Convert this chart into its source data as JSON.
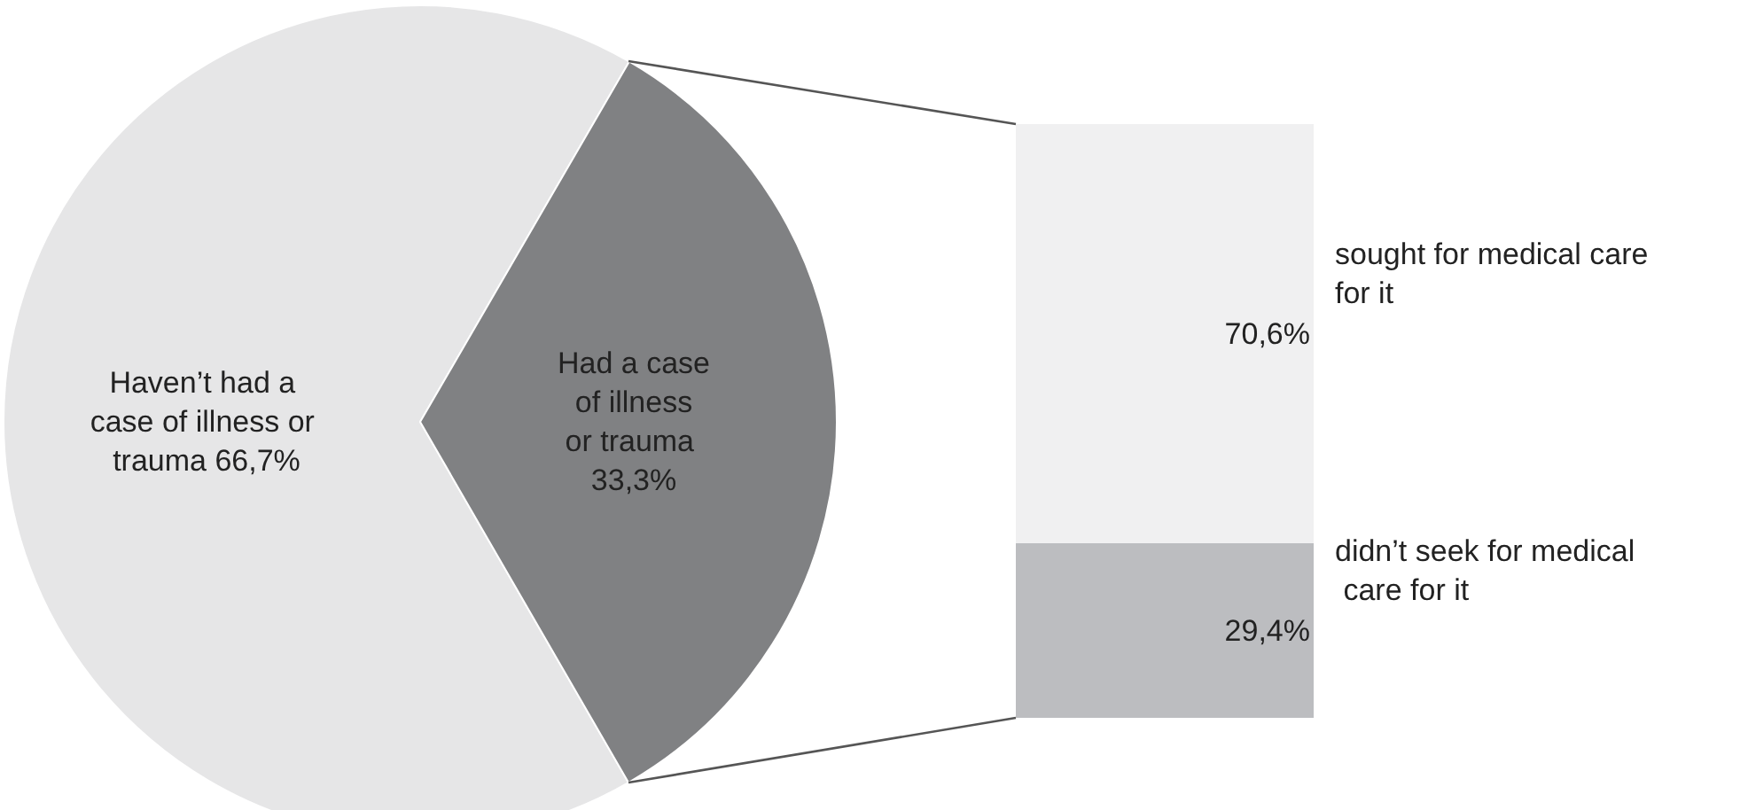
{
  "chart_data": [
    {
      "type": "pie",
      "categories": [
        "Haven’t had a case of illness or trauma",
        "Had a case of illness or trauma"
      ],
      "values": [
        66.7,
        33.3
      ],
      "colors": [
        "#e6e6e7",
        "#808183"
      ],
      "value_labels": [
        "66,7%",
        "33,3%"
      ]
    },
    {
      "type": "bar",
      "stacked": true,
      "categories": [
        null
      ],
      "series": [
        {
          "name": "didn’t seek for medical care for it",
          "color": "#bcbdc0",
          "values": [
            29.4
          ],
          "value_labels": [
            "29,4%"
          ]
        },
        {
          "name": "sought for medical care for it",
          "color": "#f0f0f1",
          "values": [
            70.6
          ],
          "value_labels": [
            "70,6%"
          ]
        }
      ]
    }
  ]
}
